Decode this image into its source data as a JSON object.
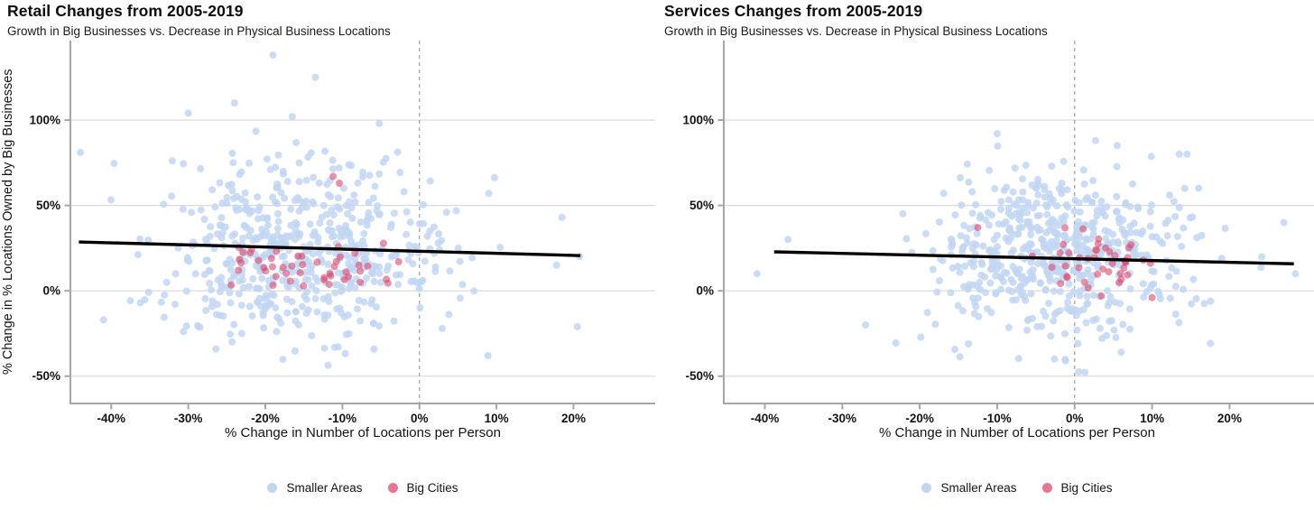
{
  "styles": {
    "grid_color": "#dcdcdc",
    "axis_color": "#a6a6a6",
    "vline_color": "#9e9e9e",
    "text_color": "#141414",
    "trend_color": "#000000",
    "smaller_areas_color": "#c2d6f2",
    "big_cities_color": "#d94a70"
  },
  "chart_data": [
    {
      "type": "scatter",
      "title": "Retail Changes from 2005-2019",
      "subtitle": "Growth in Big Businesses vs. Decrease in Physical Business Locations",
      "xlabel": "% Change in Number of Locations per Person",
      "ylabel": "% Change in % Locations Owned by Big Businesses",
      "xlim": [
        -45.3,
        30.6
      ],
      "ylim": [
        -66,
        146.5
      ],
      "x_ticks": [
        -40,
        -30,
        -20,
        -10,
        0,
        10,
        20
      ],
      "y_ticks": [
        100,
        50,
        0,
        -50
      ],
      "tick_suffix": "%",
      "grid": "horizontal-only",
      "vline_x": 0,
      "legend_position": "bottom",
      "series": [
        {
          "name": "Smaller Areas",
          "color": "#c2d6f2",
          "opacity": 0.85,
          "radius": 4,
          "n": 560,
          "seed": 42,
          "x_mean": -16,
          "x_sd": 9.5,
          "y_mean": 23,
          "y_sd": 26,
          "x_range": [
            -44.5,
            21.5
          ],
          "y_range": [
            -45,
            139
          ],
          "outliers": [
            [
              -19,
              138
            ],
            [
              -13.5,
              125
            ],
            [
              -24,
              110
            ],
            [
              -30,
              104
            ],
            [
              -16.5,
              102
            ],
            [
              -44,
              81
            ],
            [
              -41,
              -17
            ],
            [
              18.5,
              43
            ],
            [
              20.5,
              -21
            ],
            [
              17.8,
              15
            ],
            [
              9,
              57
            ],
            [
              -2,
              58
            ],
            [
              20.8,
              20
            ]
          ]
        },
        {
          "name": "Big Cities",
          "color": "#d94a70",
          "opacity": 0.6,
          "radius": 4,
          "n": 46,
          "seed": 7,
          "x_mean": -15,
          "x_sd": 5.5,
          "y_mean": 13,
          "y_sd": 8,
          "x_range": [
            -27,
            -2
          ],
          "y_range": [
            -3,
            36
          ],
          "outliers": [
            [
              -11.2,
              67
            ],
            [
              -10.4,
              63
            ],
            [
              -2.7,
              17
            ]
          ]
        }
      ],
      "trend": {
        "x1": -44.2,
        "y1": 28.6,
        "x2": 20.9,
        "y2": 20.6,
        "width": 3.4
      }
    },
    {
      "type": "scatter",
      "title": "Services Changes from 2005-2019",
      "subtitle": "Growth in Big Businesses vs. Decrease in Physical Business Locations",
      "xlabel": "% Change in Number of Locations per Person",
      "ylabel": "",
      "xlim": [
        -45.3,
        30.9
      ],
      "ylim": [
        -66,
        146.5
      ],
      "x_ticks": [
        -40,
        -30,
        -20,
        -10,
        0,
        10,
        20
      ],
      "y_ticks": [
        100,
        50,
        0,
        -50
      ],
      "tick_suffix": "%",
      "grid": "horizontal-only",
      "vline_x": 0,
      "legend_position": "bottom",
      "series": [
        {
          "name": "Smaller Areas",
          "color": "#c2d6f2",
          "opacity": 0.85,
          "radius": 4,
          "n": 570,
          "seed": 99,
          "x_mean": -3,
          "x_sd": 8.5,
          "y_mean": 22,
          "y_sd": 24,
          "x_range": [
            -41,
            29
          ],
          "y_range": [
            -48,
            112
          ],
          "outliers": [
            [
              -10,
              92
            ],
            [
              2.7,
              88
            ],
            [
              5.5,
              85
            ],
            [
              13.5,
              80
            ],
            [
              -37,
              30
            ],
            [
              -41,
              10
            ],
            [
              27,
              40
            ],
            [
              28.5,
              10
            ],
            [
              16,
              60
            ],
            [
              -27,
              -20
            ],
            [
              -2.6,
              -40
            ],
            [
              6,
              -36
            ],
            [
              14.5,
              80
            ]
          ]
        },
        {
          "name": "Big Cities",
          "color": "#d94a70",
          "opacity": 0.6,
          "radius": 4,
          "n": 42,
          "seed": 13,
          "x_mean": 2.5,
          "x_sd": 5.5,
          "y_mean": 16,
          "y_sd": 9.5,
          "x_range": [
            -13,
            11.5
          ],
          "y_range": [
            -6,
            38
          ],
          "outliers": [
            [
              10,
              -4
            ],
            [
              -12.5,
              37
            ]
          ]
        }
      ],
      "trend": {
        "x1": -38.8,
        "y1": 22.8,
        "x2": 28.3,
        "y2": 15.8,
        "width": 3.4
      }
    }
  ]
}
